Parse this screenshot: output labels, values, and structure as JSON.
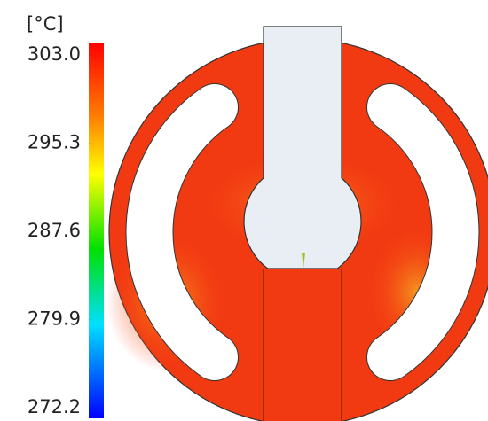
{
  "colorbar": {
    "unit": "[°C]",
    "lim": [
      272.2,
      303.0
    ],
    "ticks": [
      {
        "value": 303.0,
        "label": "303.0"
      },
      {
        "value": 295.3,
        "label": "295.3"
      },
      {
        "value": 287.6,
        "label": "287.6"
      },
      {
        "value": 279.9,
        "label": "279.9"
      },
      {
        "value": 272.2,
        "label": "272.2"
      }
    ]
  }
}
